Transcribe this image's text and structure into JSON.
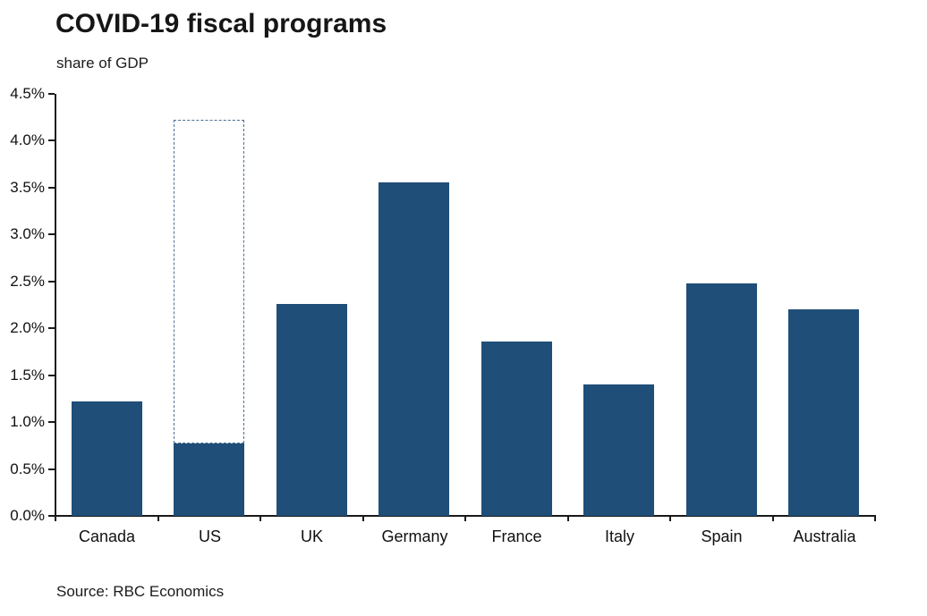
{
  "chart_data": {
    "type": "bar",
    "title": "COVID-19 fiscal programs",
    "subtitle": "share of GDP",
    "source": "Source: RBC Economics",
    "categories": [
      "Canada",
      "US",
      "UK",
      "Germany",
      "France",
      "Italy",
      "Spain",
      "Australia"
    ],
    "values": [
      1.22,
      0.77,
      2.26,
      3.56,
      1.86,
      1.4,
      2.48,
      2.2
    ],
    "annotations": [
      {
        "type": "dashed-outline",
        "category": "US",
        "from_value": 0.77,
        "to_value": 4.22
      }
    ],
    "ylim": [
      0,
      4.5
    ],
    "ytick_step": 0.5,
    "ytick_labels": [
      "0.0%",
      "0.5%",
      "1.0%",
      "1.5%",
      "2.0%",
      "2.5%",
      "3.0%",
      "3.5%",
      "4.0%",
      "4.5%"
    ],
    "xlabel": "",
    "ylabel": "",
    "grid": false,
    "legend": false,
    "colors": {
      "bar": "#1F4E78",
      "dashed_outline": "#4A6F94",
      "axis": "#1A1A1A",
      "text": "#111111"
    }
  }
}
